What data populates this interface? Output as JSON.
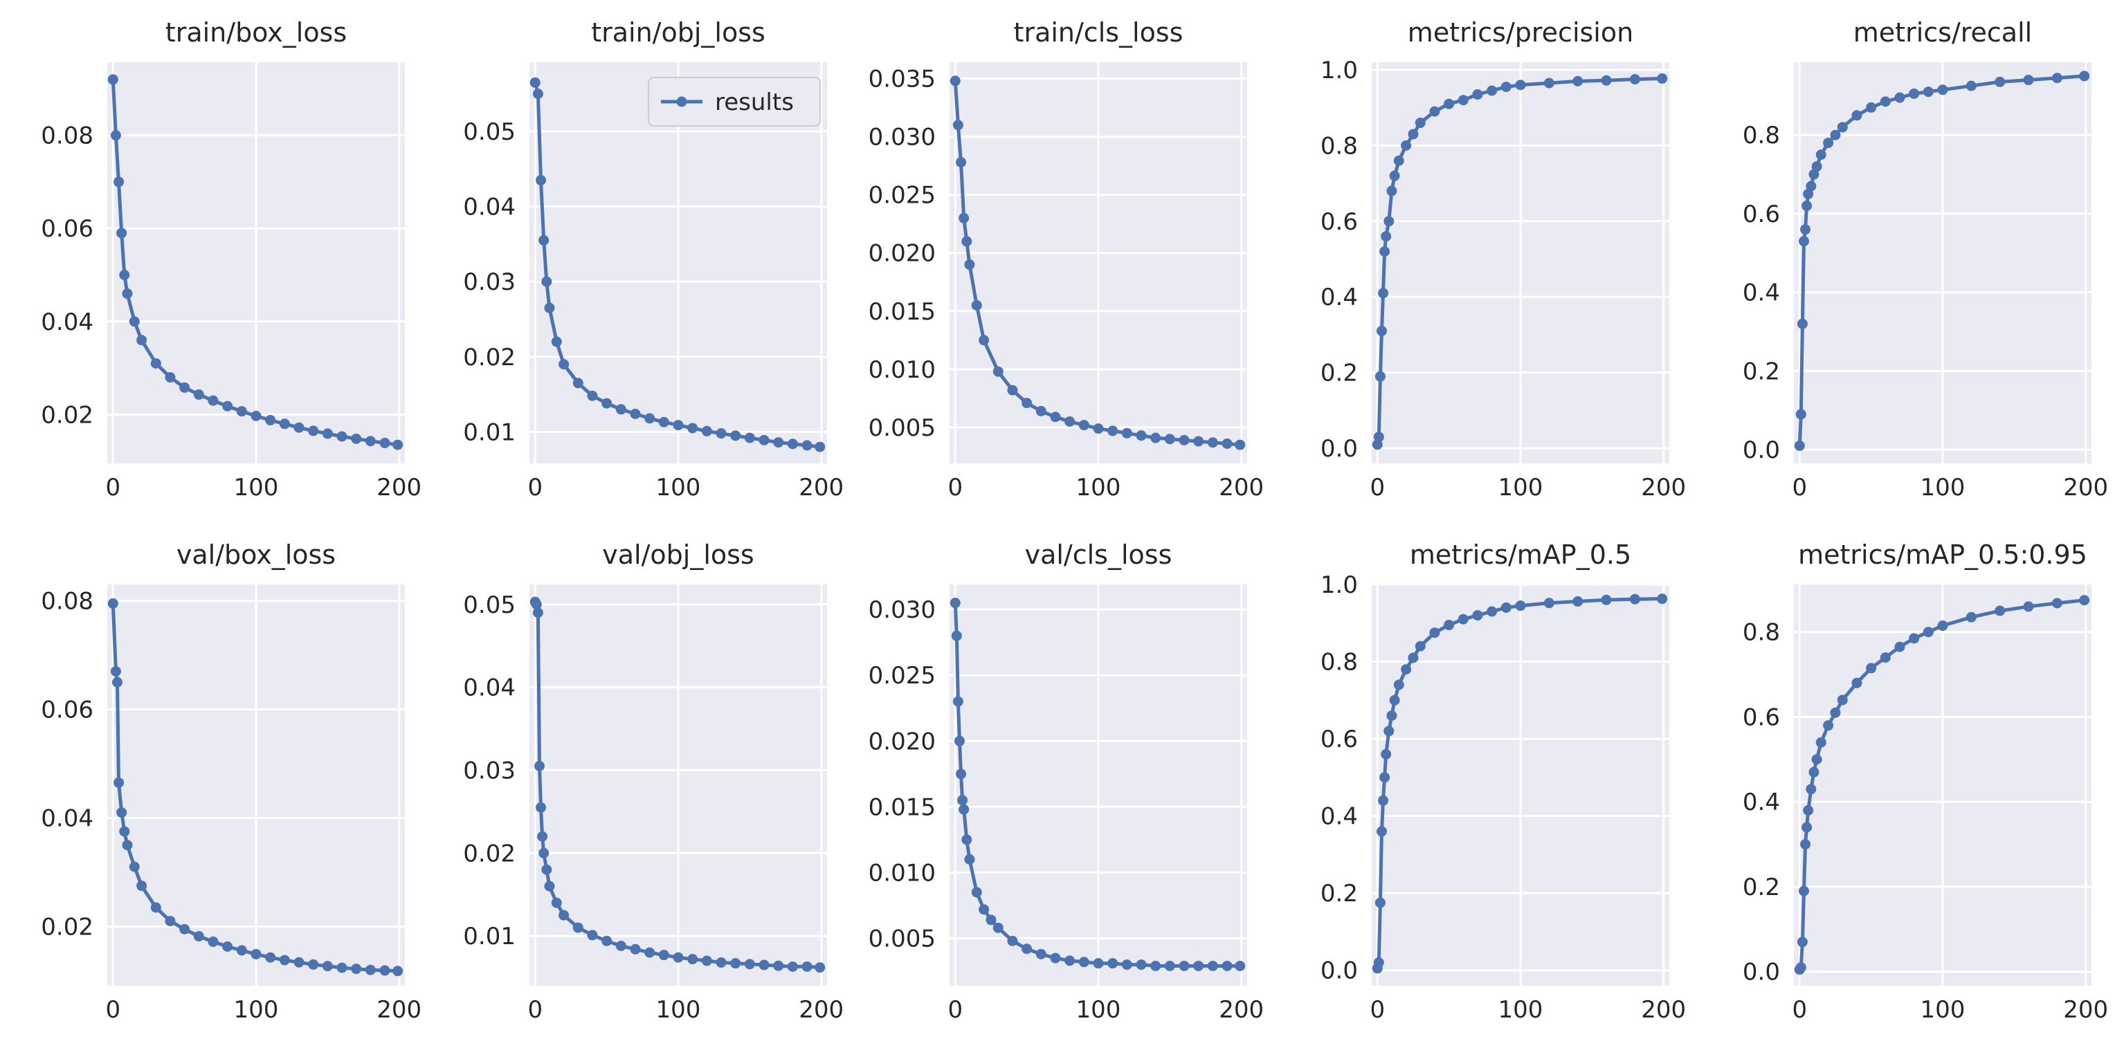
{
  "chart_data": [
    {
      "type": "line",
      "title": "train/box_loss",
      "xlim": [
        -4,
        204
      ],
      "ylim": [
        0.0095,
        0.0957
      ],
      "xticks": [
        0,
        100,
        200
      ],
      "xtick_labels": [
        "0",
        "100",
        "200"
      ],
      "yticks": [
        0.02,
        0.04,
        0.06,
        0.08
      ],
      "ytick_labels": [
        "0.02",
        "0.04",
        "0.06",
        "0.08"
      ],
      "series": [
        {
          "name": "results",
          "x": [
            0,
            2,
            4,
            6,
            8,
            10,
            15,
            20,
            30,
            40,
            50,
            60,
            70,
            80,
            90,
            100,
            110,
            120,
            130,
            140,
            150,
            160,
            170,
            180,
            190,
            199
          ],
          "values": [
            0.092,
            0.08,
            0.07,
            0.059,
            0.05,
            0.046,
            0.04,
            0.036,
            0.031,
            0.028,
            0.0258,
            0.0243,
            0.023,
            0.0218,
            0.0207,
            0.0197,
            0.0188,
            0.018,
            0.0172,
            0.0165,
            0.0159,
            0.0153,
            0.0148,
            0.0143,
            0.0139,
            0.0135
          ]
        }
      ]
    },
    {
      "type": "line",
      "title": "train/obj_loss",
      "xlim": [
        -4,
        204
      ],
      "ylim": [
        0.0058,
        0.0592
      ],
      "xticks": [
        0,
        100,
        200
      ],
      "xtick_labels": [
        "0",
        "100",
        "200"
      ],
      "yticks": [
        0.01,
        0.02,
        0.03,
        0.04,
        0.05
      ],
      "ytick_labels": [
        "0.01",
        "0.02",
        "0.03",
        "0.04",
        "0.05"
      ],
      "legend": {
        "label": "results",
        "location": "top-right"
      },
      "series": [
        {
          "name": "results",
          "x": [
            0,
            2,
            4,
            6,
            8,
            10,
            15,
            20,
            30,
            40,
            50,
            60,
            70,
            80,
            90,
            100,
            110,
            120,
            130,
            140,
            150,
            160,
            170,
            180,
            190,
            199
          ],
          "values": [
            0.0565,
            0.055,
            0.0435,
            0.0355,
            0.03,
            0.0265,
            0.022,
            0.019,
            0.0165,
            0.0148,
            0.0138,
            0.013,
            0.0124,
            0.0118,
            0.0113,
            0.0109,
            0.0105,
            0.0101,
            0.0098,
            0.0095,
            0.0092,
            0.0089,
            0.0086,
            0.0084,
            0.0082,
            0.008
          ]
        }
      ]
    },
    {
      "type": "line",
      "title": "train/cls_loss",
      "xlim": [
        -4,
        204
      ],
      "ylim": [
        0.0019,
        0.0364
      ],
      "xticks": [
        0,
        100,
        200
      ],
      "xtick_labels": [
        "0",
        "100",
        "200"
      ],
      "yticks": [
        0.005,
        0.01,
        0.015,
        0.02,
        0.025,
        0.03,
        0.035
      ],
      "ytick_labels": [
        "0.005",
        "0.010",
        "0.015",
        "0.020",
        "0.025",
        "0.030",
        "0.035"
      ],
      "series": [
        {
          "name": "results",
          "x": [
            0,
            2,
            4,
            6,
            8,
            10,
            15,
            20,
            30,
            40,
            50,
            60,
            70,
            80,
            90,
            100,
            110,
            120,
            130,
            140,
            150,
            160,
            170,
            180,
            190,
            199
          ],
          "values": [
            0.0348,
            0.031,
            0.0278,
            0.023,
            0.021,
            0.019,
            0.0155,
            0.0125,
            0.0098,
            0.0082,
            0.0071,
            0.0064,
            0.0059,
            0.0055,
            0.0052,
            0.0049,
            0.0047,
            0.0045,
            0.0043,
            0.0041,
            0.004,
            0.0039,
            0.0038,
            0.0037,
            0.0036,
            0.0035
          ]
        }
      ]
    },
    {
      "type": "line",
      "title": "metrics/precision",
      "xlim": [
        -4,
        204
      ],
      "ylim": [
        -0.04,
        1.02
      ],
      "xticks": [
        0,
        100,
        200
      ],
      "xtick_labels": [
        "0",
        "100",
        "200"
      ],
      "yticks": [
        0.0,
        0.2,
        0.4,
        0.6,
        0.8,
        1.0
      ],
      "ytick_labels": [
        "0.0",
        "0.2",
        "0.4",
        "0.6",
        "0.8",
        "1.0"
      ],
      "series": [
        {
          "name": "results",
          "x": [
            0,
            1,
            2,
            3,
            4,
            5,
            6,
            8,
            10,
            12,
            15,
            20,
            25,
            30,
            40,
            50,
            60,
            70,
            80,
            90,
            100,
            120,
            140,
            160,
            180,
            199
          ],
          "values": [
            0.01,
            0.03,
            0.19,
            0.31,
            0.41,
            0.52,
            0.56,
            0.6,
            0.68,
            0.72,
            0.76,
            0.8,
            0.83,
            0.86,
            0.89,
            0.91,
            0.92,
            0.935,
            0.945,
            0.955,
            0.96,
            0.965,
            0.97,
            0.972,
            0.975,
            0.977
          ]
        }
      ]
    },
    {
      "type": "line",
      "title": "metrics/recall",
      "xlim": [
        -4,
        204
      ],
      "ylim": [
        -0.035,
        0.985
      ],
      "xticks": [
        0,
        100,
        200
      ],
      "xtick_labels": [
        "0",
        "100",
        "200"
      ],
      "yticks": [
        0.0,
        0.2,
        0.4,
        0.6,
        0.8
      ],
      "ytick_labels": [
        "0.0",
        "0.2",
        "0.4",
        "0.6",
        "0.8"
      ],
      "series": [
        {
          "name": "results",
          "x": [
            0,
            1,
            2,
            3,
            4,
            5,
            6,
            8,
            10,
            12,
            15,
            20,
            25,
            30,
            40,
            50,
            60,
            70,
            80,
            90,
            100,
            120,
            140,
            160,
            180,
            199
          ],
          "values": [
            0.01,
            0.09,
            0.32,
            0.53,
            0.56,
            0.62,
            0.65,
            0.67,
            0.7,
            0.72,
            0.75,
            0.78,
            0.8,
            0.82,
            0.85,
            0.87,
            0.885,
            0.895,
            0.905,
            0.91,
            0.915,
            0.925,
            0.935,
            0.94,
            0.945,
            0.95
          ]
        }
      ]
    },
    {
      "type": "line",
      "title": "val/box_loss",
      "xlim": [
        -4,
        204
      ],
      "ylim": [
        0.0091,
        0.083
      ],
      "xticks": [
        0,
        100,
        200
      ],
      "xtick_labels": [
        "0",
        "100",
        "200"
      ],
      "yticks": [
        0.02,
        0.04,
        0.06,
        0.08
      ],
      "ytick_labels": [
        "0.02",
        "0.04",
        "0.06",
        "0.08"
      ],
      "series": [
        {
          "name": "results",
          "x": [
            0,
            2,
            3,
            4,
            6,
            8,
            10,
            15,
            20,
            30,
            40,
            50,
            60,
            70,
            80,
            90,
            100,
            110,
            120,
            130,
            140,
            150,
            160,
            170,
            180,
            190,
            199
          ],
          "values": [
            0.0795,
            0.067,
            0.065,
            0.0465,
            0.041,
            0.0375,
            0.035,
            0.031,
            0.0275,
            0.0235,
            0.021,
            0.0195,
            0.0182,
            0.0172,
            0.0163,
            0.0156,
            0.0149,
            0.0143,
            0.0138,
            0.0134,
            0.013,
            0.0127,
            0.0124,
            0.0122,
            0.012,
            0.0119,
            0.0118
          ]
        }
      ]
    },
    {
      "type": "line",
      "title": "val/obj_loss",
      "xlim": [
        -4,
        204
      ],
      "ylim": [
        0.004,
        0.0524
      ],
      "xticks": [
        0,
        100,
        200
      ],
      "xtick_labels": [
        "0",
        "100",
        "200"
      ],
      "yticks": [
        0.01,
        0.02,
        0.03,
        0.04,
        0.05
      ],
      "ytick_labels": [
        "0.01",
        "0.02",
        "0.03",
        "0.04",
        "0.05"
      ],
      "series": [
        {
          "name": "results",
          "x": [
            0,
            1,
            2,
            3,
            4,
            5,
            6,
            8,
            10,
            15,
            20,
            30,
            40,
            50,
            60,
            70,
            80,
            90,
            100,
            110,
            120,
            130,
            140,
            150,
            160,
            170,
            180,
            190,
            199
          ],
          "values": [
            0.0503,
            0.05,
            0.049,
            0.0305,
            0.0255,
            0.022,
            0.02,
            0.018,
            0.016,
            0.014,
            0.0125,
            0.011,
            0.0101,
            0.0094,
            0.0088,
            0.0084,
            0.008,
            0.0077,
            0.0074,
            0.0072,
            0.007,
            0.0068,
            0.0067,
            0.0066,
            0.0065,
            0.0064,
            0.0063,
            0.0063,
            0.0062
          ]
        }
      ]
    },
    {
      "type": "line",
      "title": "val/cls_loss",
      "xlim": [
        -4,
        204
      ],
      "ylim": [
        0.0014,
        0.0319
      ],
      "xticks": [
        0,
        100,
        200
      ],
      "xtick_labels": [
        "0",
        "100",
        "200"
      ],
      "yticks": [
        0.005,
        0.01,
        0.015,
        0.02,
        0.025,
        0.03
      ],
      "ytick_labels": [
        "0.005",
        "0.010",
        "0.015",
        "0.020",
        "0.025",
        "0.030"
      ],
      "series": [
        {
          "name": "results",
          "x": [
            0,
            1,
            2,
            3,
            4,
            5,
            6,
            8,
            10,
            15,
            20,
            25,
            30,
            40,
            50,
            60,
            70,
            80,
            90,
            100,
            110,
            120,
            130,
            140,
            150,
            160,
            170,
            180,
            190,
            199
          ],
          "values": [
            0.0305,
            0.028,
            0.023,
            0.02,
            0.0175,
            0.0155,
            0.0148,
            0.0125,
            0.011,
            0.0085,
            0.0072,
            0.0064,
            0.0058,
            0.0048,
            0.0042,
            0.0038,
            0.0035,
            0.0033,
            0.0032,
            0.0031,
            0.0031,
            0.003,
            0.003,
            0.0029,
            0.0029,
            0.0029,
            0.0029,
            0.0029,
            0.0029,
            0.0029
          ]
        }
      ]
    },
    {
      "type": "line",
      "title": "metrics/mAP_0.5",
      "xlim": [
        -4,
        204
      ],
      "ylim": [
        -0.04,
        1.0
      ],
      "xticks": [
        0,
        100,
        200
      ],
      "xtick_labels": [
        "0",
        "100",
        "200"
      ],
      "yticks": [
        0.0,
        0.2,
        0.4,
        0.6,
        0.8,
        1.0
      ],
      "ytick_labels": [
        "0.0",
        "0.2",
        "0.4",
        "0.6",
        "0.8",
        "1.0"
      ],
      "series": [
        {
          "name": "results",
          "x": [
            0,
            1,
            2,
            3,
            4,
            5,
            6,
            8,
            10,
            12,
            15,
            20,
            25,
            30,
            40,
            50,
            60,
            70,
            80,
            90,
            100,
            120,
            140,
            160,
            180,
            199
          ],
          "values": [
            0.005,
            0.02,
            0.175,
            0.36,
            0.44,
            0.5,
            0.56,
            0.62,
            0.66,
            0.7,
            0.74,
            0.78,
            0.81,
            0.84,
            0.875,
            0.895,
            0.91,
            0.92,
            0.93,
            0.94,
            0.945,
            0.952,
            0.956,
            0.96,
            0.962,
            0.963
          ]
        }
      ]
    },
    {
      "type": "line",
      "title": "metrics/mAP_0.5:0.95",
      "xlim": [
        -4,
        204
      ],
      "ylim": [
        -0.033,
        0.912
      ],
      "xticks": [
        0,
        100,
        200
      ],
      "xtick_labels": [
        "0",
        "100",
        "200"
      ],
      "yticks": [
        0.0,
        0.2,
        0.4,
        0.6,
        0.8
      ],
      "ytick_labels": [
        "0.0",
        "0.2",
        "0.4",
        "0.6",
        "0.8"
      ],
      "series": [
        {
          "name": "results",
          "x": [
            0,
            1,
            2,
            3,
            4,
            5,
            6,
            8,
            10,
            12,
            15,
            20,
            25,
            30,
            40,
            50,
            60,
            70,
            80,
            90,
            100,
            120,
            140,
            160,
            180,
            199
          ],
          "values": [
            0.005,
            0.01,
            0.07,
            0.19,
            0.3,
            0.34,
            0.38,
            0.43,
            0.47,
            0.5,
            0.54,
            0.58,
            0.61,
            0.64,
            0.68,
            0.715,
            0.74,
            0.765,
            0.785,
            0.8,
            0.815,
            0.835,
            0.85,
            0.86,
            0.868,
            0.875
          ]
        }
      ]
    }
  ]
}
